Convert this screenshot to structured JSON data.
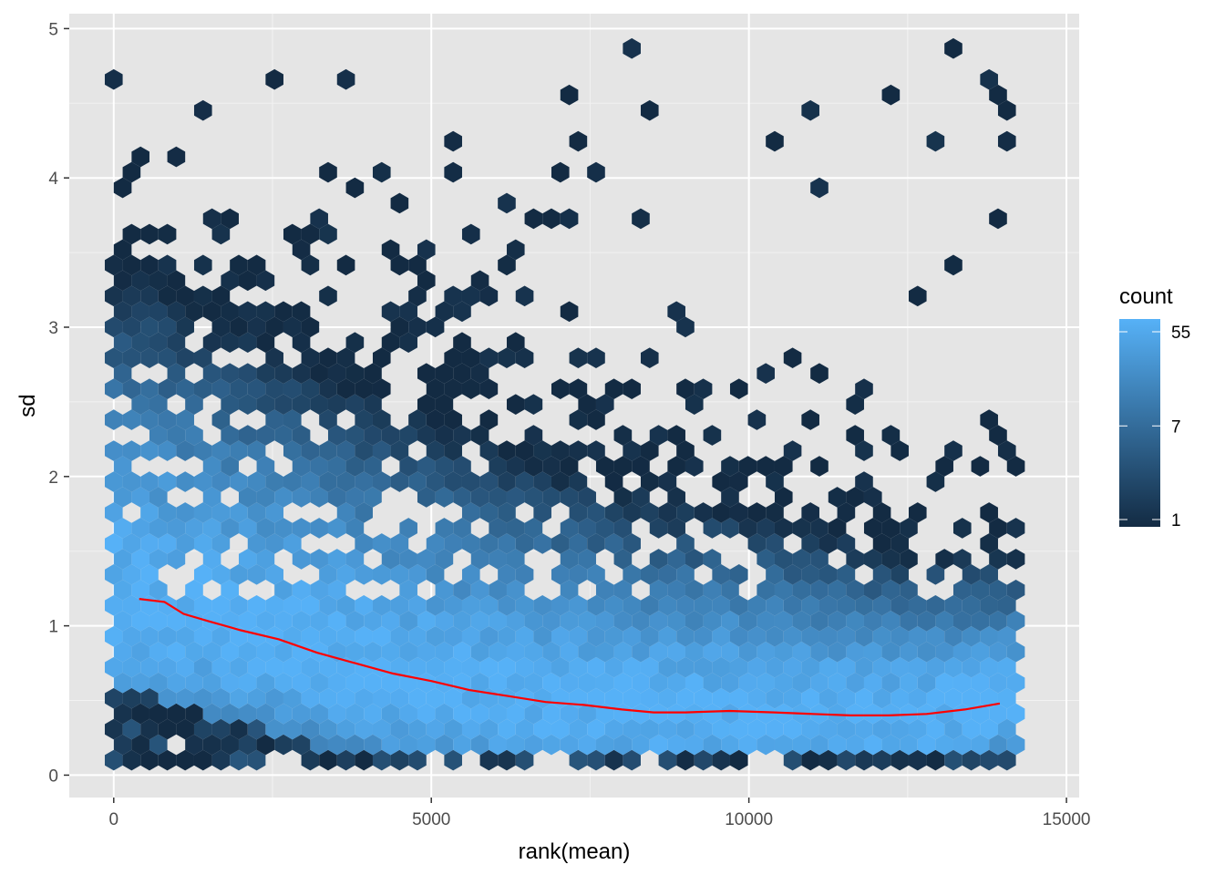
{
  "chart_data": {
    "type": "heatmap",
    "subtype": "hexbin",
    "title": "",
    "xlabel": "rank(mean)",
    "ylabel": "sd",
    "xlim": [
      -700,
      15200
    ],
    "ylim": [
      -0.15,
      5.1
    ],
    "x_ticks": [
      0,
      5000,
      10000,
      15000
    ],
    "y_ticks": [
      0,
      1,
      2,
      3,
      4,
      5
    ],
    "x_tick_labels": [
      "0",
      "5000",
      "10000",
      "15000"
    ],
    "y_tick_labels": [
      "0",
      "1",
      "2",
      "3",
      "4",
      "5"
    ],
    "panel_background": "#e5e5e5",
    "grid": true,
    "legend": {
      "title": "count",
      "placement": "right",
      "scale": "log",
      "ticks": [
        1,
        7,
        55
      ],
      "tick_labels": [
        "1",
        "7",
        "55"
      ],
      "color_low": "#132b43",
      "color_high": "#56b1f7"
    },
    "hex_bins_note": "dense hexbin of ~14000 features; counts highest (~55) near sd 0.3–0.6, decreasing with sd",
    "trend_line": {
      "name": "",
      "color": "#ff0000",
      "x": [
        400,
        800,
        1100,
        1500,
        2000,
        2600,
        3200,
        3800,
        4400,
        5000,
        5600,
        6200,
        6800,
        7400,
        8000,
        8500,
        9000,
        9700,
        10400,
        11000,
        11600,
        12200,
        12800,
        13400,
        13950
      ],
      "y": [
        1.18,
        1.16,
        1.08,
        1.03,
        0.97,
        0.91,
        0.82,
        0.75,
        0.68,
        0.63,
        0.57,
        0.53,
        0.49,
        0.47,
        0.44,
        0.42,
        0.42,
        0.43,
        0.42,
        0.41,
        0.4,
        0.4,
        0.41,
        0.44,
        0.48
      ]
    }
  }
}
